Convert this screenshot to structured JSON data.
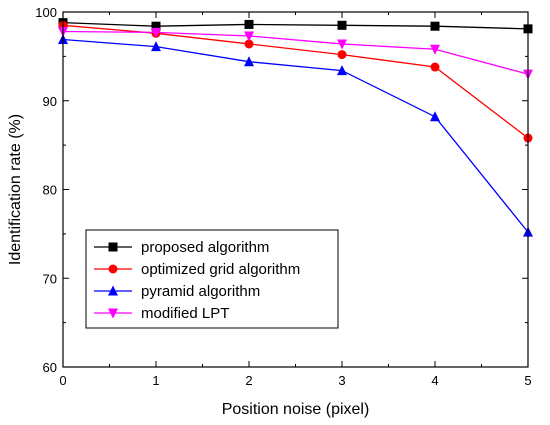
{
  "chart_data": {
    "type": "line",
    "title": "",
    "xlabel": "Position noise (pixel)",
    "ylabel": "Identification rate (%)",
    "xlim": [
      0,
      5
    ],
    "ylim": [
      60,
      100
    ],
    "xticks": [
      0,
      1,
      2,
      3,
      4,
      5
    ],
    "yticks": [
      60,
      70,
      80,
      90,
      100
    ],
    "grid": false,
    "legend_position": "bottom-left",
    "x": [
      0,
      1,
      2,
      3,
      4,
      5
    ],
    "series": [
      {
        "name": "proposed algorithm",
        "color": "#000000",
        "marker": "square",
        "values": [
          98.8,
          98.4,
          98.6,
          98.5,
          98.4,
          98.1
        ]
      },
      {
        "name": "optimized grid algorithm",
        "color": "#ff0000",
        "marker": "circle",
        "values": [
          98.5,
          97.6,
          96.4,
          95.2,
          93.8,
          85.8
        ]
      },
      {
        "name": "pyramid algorithm",
        "color": "#0000ff",
        "marker": "triangle-up",
        "values": [
          96.9,
          96.1,
          94.4,
          93.4,
          88.2,
          75.2
        ]
      },
      {
        "name": "modified LPT",
        "color": "#ff00ff",
        "marker": "triangle-down",
        "values": [
          97.8,
          97.7,
          97.3,
          96.4,
          95.8,
          93.0
        ]
      }
    ]
  }
}
